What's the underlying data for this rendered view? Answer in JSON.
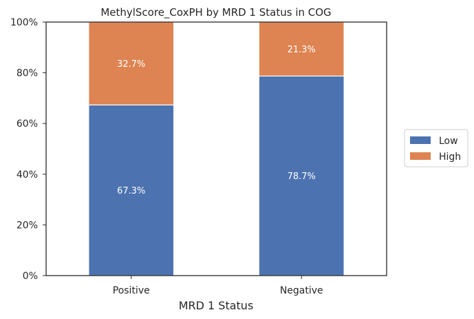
{
  "chart_data": {
    "type": "bar",
    "stacked": true,
    "title": "MethylScore_CoxPH by MRD 1 Status in COG",
    "xlabel": "MRD 1 Status",
    "ylabel": "",
    "categories": [
      "Positive",
      "Negative"
    ],
    "series": [
      {
        "name": "Low",
        "values": [
          67.3,
          78.7
        ],
        "labels": [
          "67.3%",
          "78.7%"
        ],
        "color": "#4c72b0"
      },
      {
        "name": "High",
        "values": [
          32.7,
          21.3
        ],
        "labels": [
          "32.7%",
          "21.3%"
        ],
        "color": "#dd8452"
      }
    ],
    "ylim": [
      0,
      100
    ],
    "yticks": [
      0,
      20,
      40,
      60,
      80,
      100
    ],
    "ytick_labels": [
      "0%",
      "20%",
      "40%",
      "60%",
      "80%",
      "100%"
    ],
    "grid": false,
    "legend_position": "right"
  }
}
